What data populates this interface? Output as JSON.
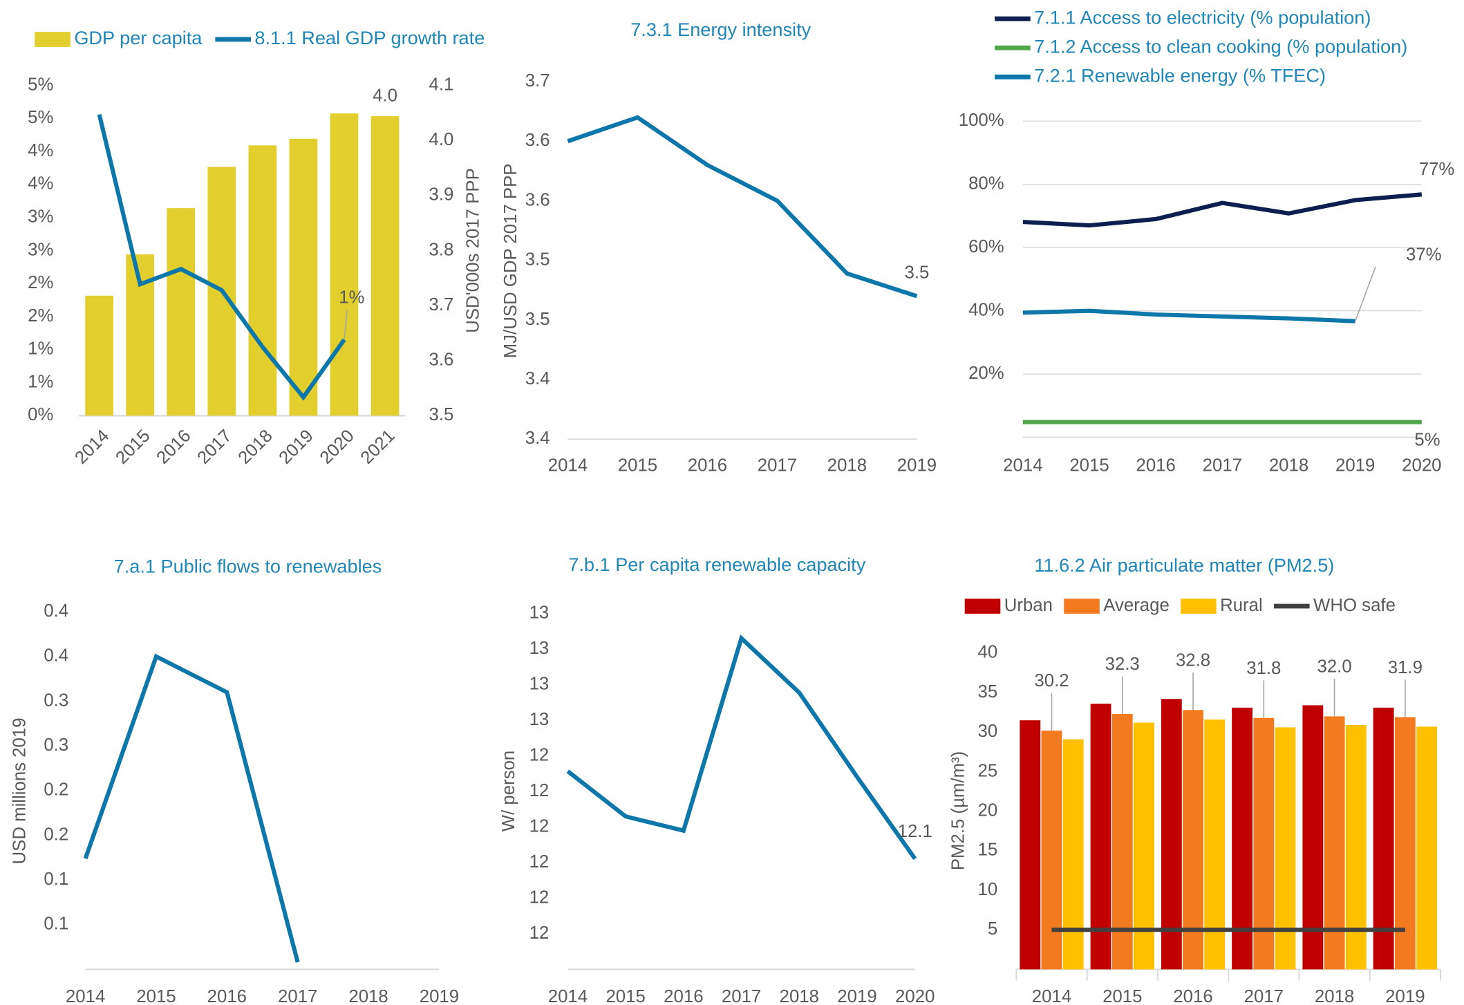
{
  "chart_data": [
    {
      "type": "combo",
      "legend": "top",
      "categories": [
        "2014",
        "2015",
        "2016",
        "2017",
        "2018",
        "2019",
        "2020",
        "2021"
      ],
      "series": [
        {
          "name": "GDP per capita",
          "kind": "bar",
          "axis": "y2",
          "color": "#e2cf2e",
          "values": [
            3.718,
            3.793,
            3.877,
            3.952,
            3.991,
            4.003,
            4.049,
            4.044
          ],
          "value_labels": [
            null,
            null,
            null,
            null,
            null,
            null,
            null,
            "4.0"
          ]
        },
        {
          "name": "8.1.1 Real GDP growth rate",
          "kind": "line",
          "color": "#0e77a9",
          "values": [
            4.56,
            1.99,
            2.22,
            1.9,
            1.04,
            0.28,
            1.15,
            null
          ],
          "value_labels": [
            null,
            null,
            null,
            null,
            null,
            null,
            "1%",
            null
          ]
        }
      ],
      "ylim": [
        0,
        5
      ],
      "yticks": [
        {
          "value": 0,
          "label": "0%"
        },
        {
          "value": 0.5,
          "label": "1%"
        },
        {
          "value": 1,
          "label": "1%"
        },
        {
          "value": 1.5,
          "label": "2%"
        },
        {
          "value": 2,
          "label": "2%"
        },
        {
          "value": 2.5,
          "label": "3%"
        },
        {
          "value": 3,
          "label": "3%"
        },
        {
          "value": 3.5,
          "label": "4%"
        },
        {
          "value": 4,
          "label": "4%"
        },
        {
          "value": 4.5,
          "label": "5%"
        },
        {
          "value": 5,
          "label": "5%"
        }
      ],
      "y2lim": [
        3.5,
        4.1
      ],
      "y2ticks": [
        3.5,
        3.6,
        3.7,
        3.8,
        3.9,
        {
          "value": 4,
          "label": "4.0"
        },
        4.1
      ],
      "y2label": "USD'000s 2017 PPP"
    },
    {
      "type": "line",
      "title": "7.3.1 Energy intensity",
      "ylabel": "MJ/USD GDP 2017 PPP",
      "categories": [
        "2014",
        "2015",
        "2016",
        "2017",
        "2018",
        "2019"
      ],
      "values": [
        3.65,
        3.67,
        3.63,
        3.6,
        3.539,
        3.52
      ],
      "value_labels": [
        null,
        null,
        null,
        null,
        null,
        "3.5"
      ],
      "color": "#0e77a9",
      "ylim": [
        3.4,
        3.7
      ],
      "yticks": [
        3.4,
        {
          "value": 3.45,
          "label": "3.4"
        },
        3.5,
        {
          "value": 3.55,
          "label": "3.5"
        },
        3.6,
        {
          "value": 3.65,
          "label": "3.6"
        },
        3.7
      ]
    },
    {
      "type": "line",
      "legend": "top",
      "grid": true,
      "categories": [
        "2014",
        "2015",
        "2016",
        "2017",
        "2018",
        "2019",
        "2020"
      ],
      "series": [
        {
          "name": "7.1.1 Access to electricity (% population)",
          "color": "#0d1f4f",
          "values": [
            68.1,
            67.0,
            69.0,
            74.1,
            70.8,
            75.0,
            76.8
          ],
          "value_labels": [
            null,
            null,
            null,
            null,
            null,
            null,
            "77%"
          ]
        },
        {
          "name": "7.1.2 Access to clean cooking (% population)",
          "color": "#4ea54a",
          "values": [
            4.8,
            4.8,
            4.8,
            4.8,
            4.8,
            4.8,
            4.8
          ],
          "value_labels": [
            null,
            null,
            null,
            null,
            null,
            null,
            "5%"
          ]
        },
        {
          "name": "7.2.1 Renewable energy (% TFEC)",
          "color": "#0e77a9",
          "values": [
            39.4,
            40.0,
            38.8,
            38.2,
            37.6,
            36.7,
            null
          ],
          "value_labels": [
            null,
            null,
            null,
            null,
            null,
            "37%",
            null
          ]
        }
      ],
      "ylim": [
        0,
        100
      ],
      "yticks": [
        {
          "value": 20,
          "label": "20%"
        },
        {
          "value": 40,
          "label": "40%"
        },
        {
          "value": 60,
          "label": "60%"
        },
        {
          "value": 80,
          "label": "80%"
        },
        {
          "value": 100,
          "label": "100%"
        }
      ]
    },
    {
      "type": "line",
      "title": "7.a.1 Public flows to renewables",
      "ylabel": "USD millions 2019",
      "categories": [
        "2014",
        "2015",
        "2016",
        "2017",
        "2018",
        "2019"
      ],
      "values": [
        0.124,
        0.35,
        0.31,
        0.008,
        null,
        null
      ],
      "color": "#0e77a9",
      "ylim": [
        0,
        0.4
      ],
      "yticks": [
        {
          "value": 0.05,
          "label": "0.1"
        },
        0.1,
        {
          "value": 0.15,
          "label": "0.2"
        },
        0.2,
        {
          "value": 0.25,
          "label": "0.3"
        },
        0.3,
        {
          "value": 0.35,
          "label": "0.4"
        },
        0.4
      ]
    },
    {
      "type": "line",
      "title": "7.b.1 Per capita renewable capacity",
      "ylabel": "W/ person",
      "categories": [
        "2014",
        "2015",
        "2016",
        "2017",
        "2018",
        "2019",
        "2020"
      ],
      "values": [
        12.357,
        12.23,
        12.19,
        12.731,
        12.578,
        12.341,
        12.111
      ],
      "value_labels": [
        null,
        null,
        null,
        null,
        null,
        null,
        "12.1"
      ],
      "color": "#0e77a9",
      "ylim": [
        11.8,
        12.8
      ],
      "yticks": [
        {
          "value": 11.9,
          "label": "12"
        },
        12,
        {
          "value": 12.1,
          "label": "12"
        },
        {
          "value": 12.2,
          "label": "12"
        },
        {
          "value": 12.3,
          "label": "12"
        },
        {
          "value": 12.4,
          "label": "12"
        },
        {
          "value": 12.5,
          "label": "13"
        },
        {
          "value": 12.6,
          "label": "13"
        },
        {
          "value": 12.7,
          "label": "13"
        },
        {
          "value": 12.8,
          "label": "13"
        }
      ]
    },
    {
      "type": "bar",
      "title": "11.6.2 Air particulate matter (PM2.5)",
      "ylabel": "PM2.5 (µm/m³)",
      "legend": "top",
      "categories": [
        "2014",
        "2015",
        "2016",
        "2017",
        "2018",
        "2019"
      ],
      "series": [
        {
          "name": "Urban",
          "kind": "bar",
          "color": "#c00000",
          "values": [
            31.5,
            33.6,
            34.2,
            33.1,
            33.4,
            33.1
          ]
        },
        {
          "name": "Average",
          "kind": "bar",
          "color": "#f47a1f",
          "values": [
            30.2,
            32.3,
            32.8,
            31.8,
            32.0,
            31.9
          ],
          "value_labels": [
            "30.2",
            "32.3",
            "32.8",
            "31.8",
            "32.0",
            "31.9"
          ]
        },
        {
          "name": "Rural",
          "kind": "bar",
          "color": "#ffc000",
          "values": [
            29.1,
            31.2,
            31.6,
            30.6,
            30.9,
            30.7
          ]
        },
        {
          "name": "WHO safe",
          "kind": "line",
          "color": "#404040",
          "values": [
            5,
            5,
            5,
            5,
            5,
            5
          ]
        }
      ],
      "ylim": [
        0,
        40
      ],
      "yticks": [
        5,
        10,
        15,
        20,
        25,
        30,
        35,
        40
      ]
    }
  ]
}
